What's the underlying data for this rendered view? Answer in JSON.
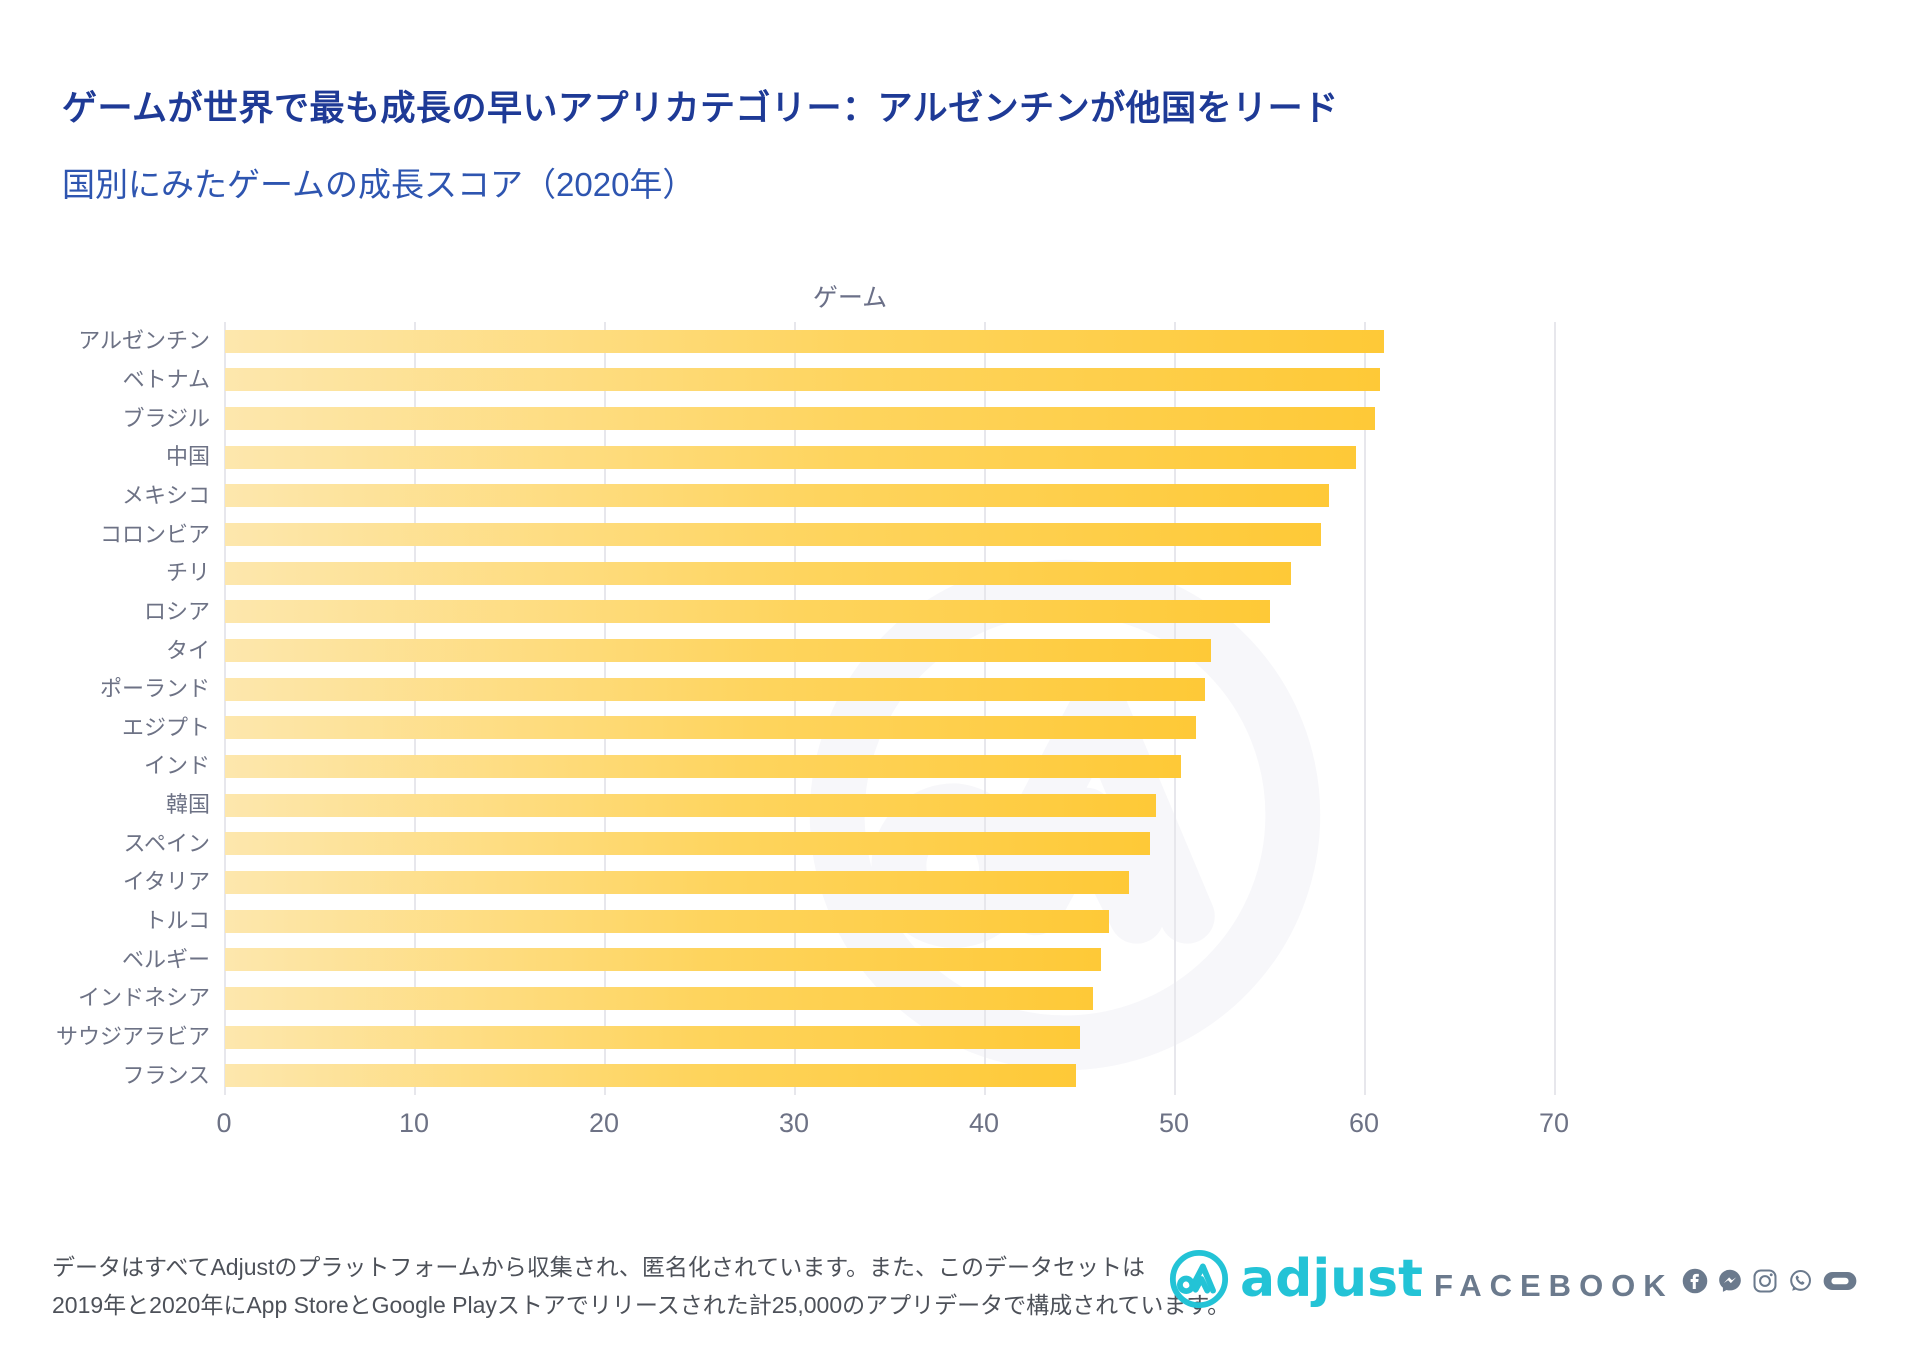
{
  "header": {
    "title": "ゲームが世界で最も成長の早いアプリカテゴリー：アルゼンチンが他国をリード",
    "subtitle": "国別にみたゲームの成長スコア（2020年）"
  },
  "chart_data": {
    "type": "bar",
    "orientation": "horizontal",
    "title": "ゲーム",
    "categories": [
      "アルゼンチン",
      "ベトナム",
      "ブラジル",
      "中国",
      "メキシコ",
      "コロンビア",
      "チリ",
      "ロシア",
      "タイ",
      "ポーランド",
      "エジプト",
      "インド",
      "韓国",
      "スペイン",
      "イタリア",
      "トルコ",
      "ベルギー",
      "インドネシア",
      "サウジアラビア",
      "フランス"
    ],
    "values": [
      61.0,
      60.8,
      60.5,
      59.5,
      58.1,
      57.7,
      56.1,
      55.0,
      51.9,
      51.6,
      51.1,
      50.3,
      49.0,
      48.7,
      47.6,
      46.5,
      46.1,
      45.7,
      45.0,
      44.8
    ],
    "xlabel": "",
    "ylabel": "",
    "xlim": [
      0,
      70
    ],
    "xticks": [
      0,
      10,
      20,
      30,
      40,
      50,
      60,
      70
    ],
    "grid": true,
    "legend": "none",
    "bar_gradient_left": "#fde7ad",
    "bar_gradient_right": "#fec937"
  },
  "footer": {
    "line1": "データはすべてAdjustのプラットフォームから収集され、匿名化されています。また、このデータセットは",
    "line2": "2019年と2020年にApp StoreとGoogle Playストアでリリースされた計25,000のアプリデータで構成されています。"
  },
  "branding": {
    "adjust_label": "adjust",
    "facebook_label": "FACEBOOK",
    "social_icons": [
      "facebook-icon",
      "messenger-icon",
      "instagram-icon",
      "whatsapp-icon",
      "oculus-icon"
    ]
  },
  "colors": {
    "title_blue": "#1e3a96",
    "subtitle_blue": "#2e55b0",
    "axis_gray": "#6d7285",
    "gridline": "#e7e7ec",
    "footer_gray": "#4d5159",
    "adjust_cyan": "#23c3d6",
    "facebook_slate": "#6b7a8d",
    "watermark": "#f7f7fa"
  }
}
